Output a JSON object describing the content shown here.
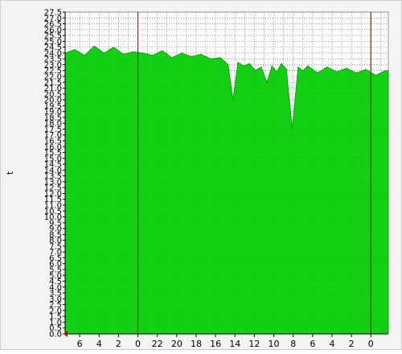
{
  "chart_data": {
    "type": "area",
    "title": "",
    "xlabel": "",
    "ylabel": "t",
    "ylim": [
      0,
      27.5
    ],
    "y_ticks": [
      "0.0",
      "0.5",
      "1.0",
      "1.5",
      "2.0",
      "2.5",
      "3.0",
      "3.5",
      "4.0",
      "4.5",
      "5.0",
      "5.5",
      "6.0",
      "6.5",
      "7.0",
      "7.5",
      "8.0",
      "8.5",
      "9.0",
      "9.5",
      "10.0",
      "10.5",
      "11.0",
      "11.5",
      "12.0",
      "12.5",
      "13.0",
      "13.5",
      "14.0",
      "14.5",
      "15.0",
      "15.5",
      "16.0",
      "16.5",
      "17.0",
      "17.5",
      "18.0",
      "18.5",
      "19.0",
      "19.5",
      "20.0",
      "20.5",
      "21.0",
      "21.5",
      "22.0",
      "22.5",
      "23.0",
      "23.5",
      "24.0",
      "24.5",
      "25.0",
      "25.5",
      "26.0",
      "26.5",
      "27.0",
      "27.5"
    ],
    "x_ticks": [
      {
        "label": "6",
        "hour": 6
      },
      {
        "label": "4",
        "hour": 4
      },
      {
        "label": "2",
        "hour": 2
      },
      {
        "label": "0",
        "hour": 0
      },
      {
        "label": "22",
        "hour": -2
      },
      {
        "label": "20",
        "hour": -4
      },
      {
        "label": "18",
        "hour": -6
      },
      {
        "label": "16",
        "hour": -8
      },
      {
        "label": "14",
        "hour": -10
      },
      {
        "label": "12",
        "hour": -12
      },
      {
        "label": "10",
        "hour": -14
      },
      {
        "label": "8",
        "hour": -16
      },
      {
        "label": "6",
        "hour": -18
      },
      {
        "label": "4",
        "hour": -20
      },
      {
        "label": "2",
        "hour": -22
      },
      {
        "label": "0",
        "hour": -24
      }
    ],
    "xlim": [
      7.5,
      -25.8
    ],
    "midnight_markers": [
      0,
      -24
    ],
    "series": [
      {
        "color": "#00cc00",
        "hours": [
          7.5,
          6.5,
          5.5,
          4.5,
          3.5,
          2.5,
          1.5,
          0.5,
          -0.5,
          -1.5,
          -2.5,
          -3.5,
          -4.5,
          -5.5,
          -6.5,
          -7.5,
          -8.5,
          -9.3,
          -9.8,
          -10.3,
          -10.9,
          -11.5,
          -12.1,
          -12.7,
          -13.3,
          -13.8,
          -14.3,
          -14.8,
          -15.3,
          -15.9,
          -16.5,
          -17.0,
          -17.5,
          -18.5,
          -19.5,
          -20.5,
          -21.5,
          -22.5,
          -23.5,
          -24.5,
          -25.5,
          -25.8
        ],
        "values": [
          24.0,
          24.3,
          23.8,
          24.6,
          24.0,
          24.5,
          23.9,
          24.1,
          24.0,
          23.8,
          24.2,
          23.6,
          24.0,
          23.7,
          23.9,
          23.5,
          23.6,
          23.0,
          20.0,
          23.2,
          22.9,
          23.1,
          22.5,
          22.8,
          21.5,
          22.9,
          22.4,
          23.1,
          22.6,
          17.5,
          22.8,
          22.5,
          22.9,
          22.3,
          22.8,
          22.4,
          22.7,
          22.3,
          22.6,
          22.1,
          22.5,
          22.5
        ]
      }
    ]
  }
}
